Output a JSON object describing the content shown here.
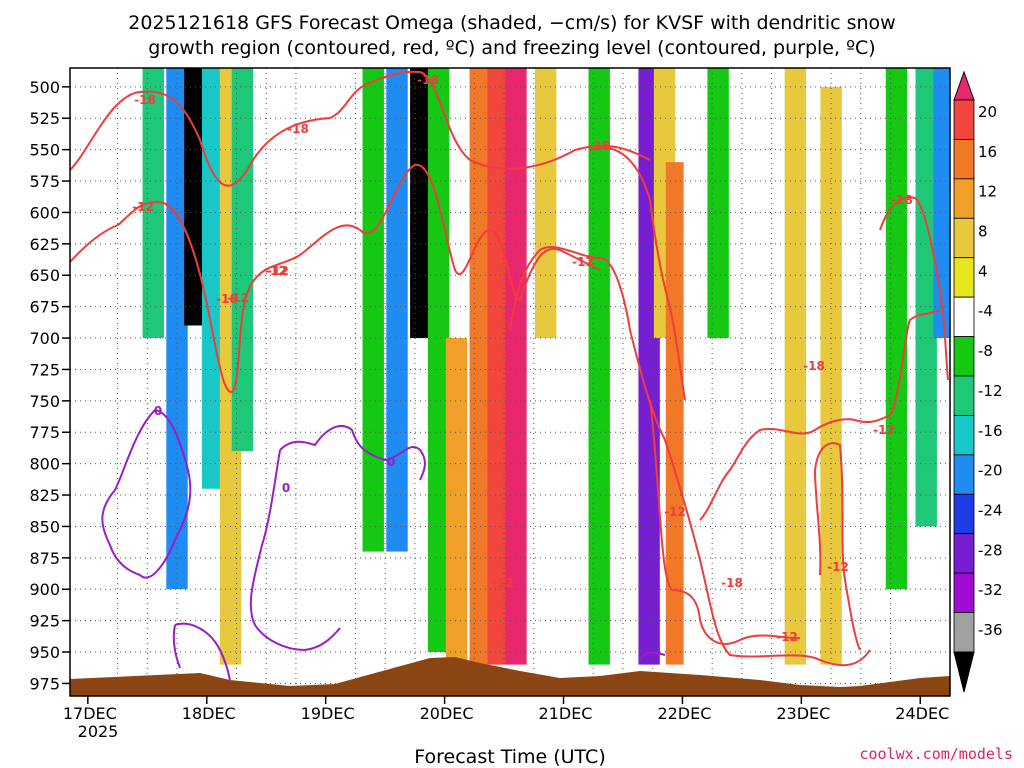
{
  "chart_data": {
    "type": "time-height contour",
    "title_line1": "2025121618 GFS Forecast Omega (shaded, −cm/s) for KVSF with dendritic snow",
    "title_line2": "growth region (contoured, red, ºC) and freezing level (contoured, purple, ºC)",
    "xlabel": "Forecast Time (UTC)",
    "ylabel": "",
    "x_ticks": [
      "17DEC",
      "18DEC",
      "19DEC",
      "20DEC",
      "21DEC",
      "22DEC",
      "23DEC",
      "24DEC"
    ],
    "x_year_label": "2025",
    "x_range_days": [
      16.85,
      24.25
    ],
    "y_ticks": [
      500,
      525,
      550,
      575,
      600,
      625,
      650,
      675,
      700,
      725,
      750,
      775,
      800,
      825,
      850,
      875,
      900,
      925,
      950,
      975
    ],
    "y_range_hpa": [
      485,
      985
    ],
    "colorbar": {
      "labels": [
        "20",
        "16",
        "12",
        "8",
        "4",
        "-4",
        "-8",
        "-12",
        "-16",
        "-20",
        "-24",
        "-28",
        "-32",
        "-36"
      ],
      "colors": [
        "#e8286e",
        "#f0463c",
        "#f07828",
        "#f0a028",
        "#e8c83c",
        "#e6e61e",
        "#ffffff",
        "#14c814",
        "#1ec878",
        "#18c8c8",
        "#1e8cf0",
        "#1e3ce6",
        "#781ed2",
        "#a00ad2",
        "#a0a0a0",
        "#000000"
      ]
    },
    "shaded_bands": [
      {
        "day": 17.0,
        "top": 485,
        "bottom": 890,
        "value": -6
      },
      {
        "day": 17.3,
        "top": 485,
        "bottom": 820,
        "value": -8
      },
      {
        "day": 17.55,
        "top": 485,
        "bottom": 700,
        "value": -14
      },
      {
        "day": 17.75,
        "top": 485,
        "bottom": 900,
        "value": -22
      },
      {
        "day": 17.9,
        "top": 485,
        "bottom": 690,
        "value": -38
      },
      {
        "day": 18.05,
        "top": 485,
        "bottom": 820,
        "value": -20
      },
      {
        "day": 18.2,
        "top": 485,
        "bottom": 960,
        "value": 6
      },
      {
        "day": 18.3,
        "top": 485,
        "bottom": 790,
        "value": -14
      },
      {
        "day": 18.55,
        "top": 485,
        "bottom": 720,
        "value": -8
      },
      {
        "day": 18.85,
        "top": 485,
        "bottom": 700,
        "value": -6
      },
      {
        "day": 19.15,
        "top": 485,
        "bottom": 700,
        "value": -6
      },
      {
        "day": 19.4,
        "top": 485,
        "bottom": 870,
        "value": -10
      },
      {
        "day": 19.6,
        "top": 485,
        "bottom": 870,
        "value": -24
      },
      {
        "day": 19.8,
        "top": 485,
        "bottom": 700,
        "value": -38
      },
      {
        "day": 19.95,
        "top": 485,
        "bottom": 950,
        "value": -12
      },
      {
        "day": 20.1,
        "top": 700,
        "bottom": 960,
        "value": 8
      },
      {
        "day": 20.3,
        "top": 485,
        "bottom": 960,
        "value": 12
      },
      {
        "day": 20.45,
        "top": 485,
        "bottom": 960,
        "value": 18
      },
      {
        "day": 20.6,
        "top": 485,
        "bottom": 960,
        "value": 20
      },
      {
        "day": 20.85,
        "top": 485,
        "bottom": 700,
        "value": 6
      },
      {
        "day": 21.1,
        "top": 485,
        "bottom": 960,
        "value": -8
      },
      {
        "day": 21.3,
        "top": 485,
        "bottom": 960,
        "value": -12
      },
      {
        "day": 21.5,
        "top": 485,
        "bottom": 900,
        "value": -8
      },
      {
        "day": 21.72,
        "top": 485,
        "bottom": 960,
        "value": -30
      },
      {
        "day": 21.85,
        "top": 485,
        "bottom": 700,
        "value": 6
      },
      {
        "day": 21.95,
        "top": 560,
        "bottom": 960,
        "value": 14
      },
      {
        "day": 22.1,
        "top": 485,
        "bottom": 960,
        "value": -6
      },
      {
        "day": 22.3,
        "top": 485,
        "bottom": 700,
        "value": -12
      },
      {
        "day": 22.5,
        "top": 485,
        "bottom": 720,
        "value": -6
      },
      {
        "day": 22.75,
        "top": 485,
        "bottom": 760,
        "value": -8
      },
      {
        "day": 22.95,
        "top": 485,
        "bottom": 960,
        "value": 6
      },
      {
        "day": 23.25,
        "top": 500,
        "bottom": 960,
        "value": 6
      },
      {
        "day": 23.55,
        "top": 485,
        "bottom": 700,
        "value": -8
      },
      {
        "day": 23.8,
        "top": 485,
        "bottom": 900,
        "value": -12
      },
      {
        "day": 24.05,
        "top": 485,
        "bottom": 850,
        "value": -16
      },
      {
        "day": 24.2,
        "top": 485,
        "bottom": 700,
        "value": -22
      }
    ],
    "red_contour_labels": [
      "-18",
      "-18",
      "-18",
      "-18",
      "-18",
      "-12",
      "-12",
      "-12",
      "-18",
      "-12",
      "-12",
      "-12",
      "-12",
      "-18",
      "-12",
      "-18",
      "-12",
      "-12"
    ],
    "purple_contour_labels": [
      "0",
      "0",
      "0"
    ]
  },
  "credit": "coolwx.com/models"
}
